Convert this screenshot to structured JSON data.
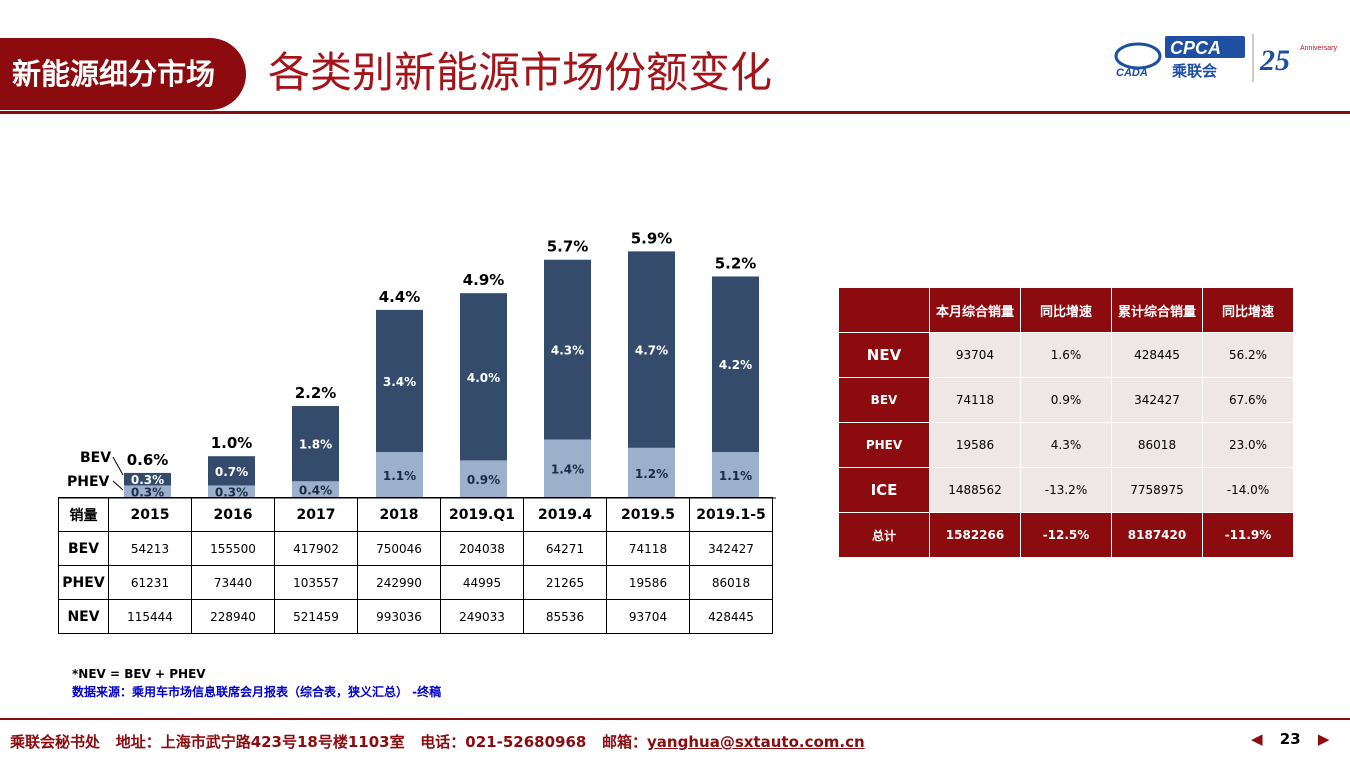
{
  "header": {
    "tab_label": "新能源细分市场",
    "title": "各类别新能源市场份额变化",
    "logo_text_cpca": "CPCA",
    "logo_text_cn": "乘联会",
    "logo_text_cada": "CADA",
    "logo_anniversary": "25",
    "logo_anniversary_word": "Anniversary"
  },
  "chart_data": {
    "type": "bar",
    "stacked": true,
    "categories": [
      "2015",
      "2016",
      "2017",
      "2018",
      "2019.Q1",
      "2019.4",
      "2019.5",
      "2019.1-5"
    ],
    "series": [
      {
        "name": "PHEV",
        "values": [
          0.3,
          0.3,
          0.4,
          1.1,
          0.9,
          1.4,
          1.2,
          1.1
        ],
        "labels": [
          "0.3%",
          "0.3%",
          "0.4%",
          "1.1%",
          "0.9%",
          "1.4%",
          "1.2%",
          "1.1%"
        ]
      },
      {
        "name": "BEV",
        "values": [
          0.3,
          0.7,
          1.8,
          3.4,
          4.0,
          4.3,
          4.7,
          4.2
        ],
        "labels": [
          "0.3%",
          "0.7%",
          "1.8%",
          "3.4%",
          "4.0%",
          "4.3%",
          "4.7%",
          "4.2%"
        ]
      }
    ],
    "totals": [
      0.6,
      1.0,
      2.2,
      4.4,
      4.9,
      5.7,
      5.9,
      5.2
    ],
    "total_labels": [
      "0.6%",
      "1.0%",
      "2.2%",
      "4.4%",
      "4.9%",
      "5.7%",
      "5.9%",
      "5.2%"
    ],
    "ylim": [
      0,
      7
    ],
    "grid": false,
    "legend_labels": {
      "bev": "BEV",
      "phev": "PHEV"
    },
    "colors": {
      "BEV": "#344b6c",
      "PHEV": "#9cb0cc"
    }
  },
  "data_table": {
    "corner": "销量",
    "columns": [
      "2015",
      "2016",
      "2017",
      "2018",
      "2019.Q1",
      "2019.4",
      "2019.5",
      "2019.1-5"
    ],
    "rows": [
      {
        "label": "BEV",
        "values": [
          "54213",
          "155500",
          "417902",
          "750046",
          "204038",
          "64271",
          "74118",
          "342427"
        ]
      },
      {
        "label": "PHEV",
        "values": [
          "61231",
          "73440",
          "103557",
          "242990",
          "44995",
          "21265",
          "19586",
          "86018"
        ]
      },
      {
        "label": "NEV",
        "values": [
          "115444",
          "228940",
          "521459",
          "993036",
          "249033",
          "85536",
          "93704",
          "428445"
        ]
      }
    ]
  },
  "summary_table": {
    "headers": [
      "",
      "本月综合销量",
      "同比增速",
      "累计综合销量",
      "同比增速"
    ],
    "rows": [
      {
        "label": "NEV",
        "values": [
          "93704",
          "1.6%",
          "428445",
          "56.2%"
        ]
      },
      {
        "label": "BEV",
        "values": [
          "74118",
          "0.9%",
          "342427",
          "67.6%"
        ]
      },
      {
        "label": "PHEV",
        "values": [
          "19586",
          "4.3%",
          "86018",
          "23.0%"
        ]
      },
      {
        "label": "ICE",
        "values": [
          "1488562",
          "-13.2%",
          "7758975",
          "-14.0%"
        ]
      }
    ],
    "total": {
      "label": "总计",
      "values": [
        "1582266",
        "-12.5%",
        "8187420",
        "-11.9%"
      ]
    }
  },
  "notes": {
    "definition": "*NEV = BEV + PHEV",
    "source": "数据来源：乘用车市场信息联席会月报表（综合表，狭义汇总） -终稿"
  },
  "footer": {
    "org": "乘联会秘书处",
    "address": "地址：上海市武宁路423号18号楼1103室",
    "phone": "电话：021-52680968",
    "email_label": "邮箱：",
    "email": "yanghua@sxtauto.com.cn",
    "page_number": "23",
    "prev_icon": "◀",
    "next_icon": "▶"
  },
  "colors": {
    "brand": "#8b0b0f",
    "title": "#a3151a",
    "source_note": "#0000c8"
  }
}
